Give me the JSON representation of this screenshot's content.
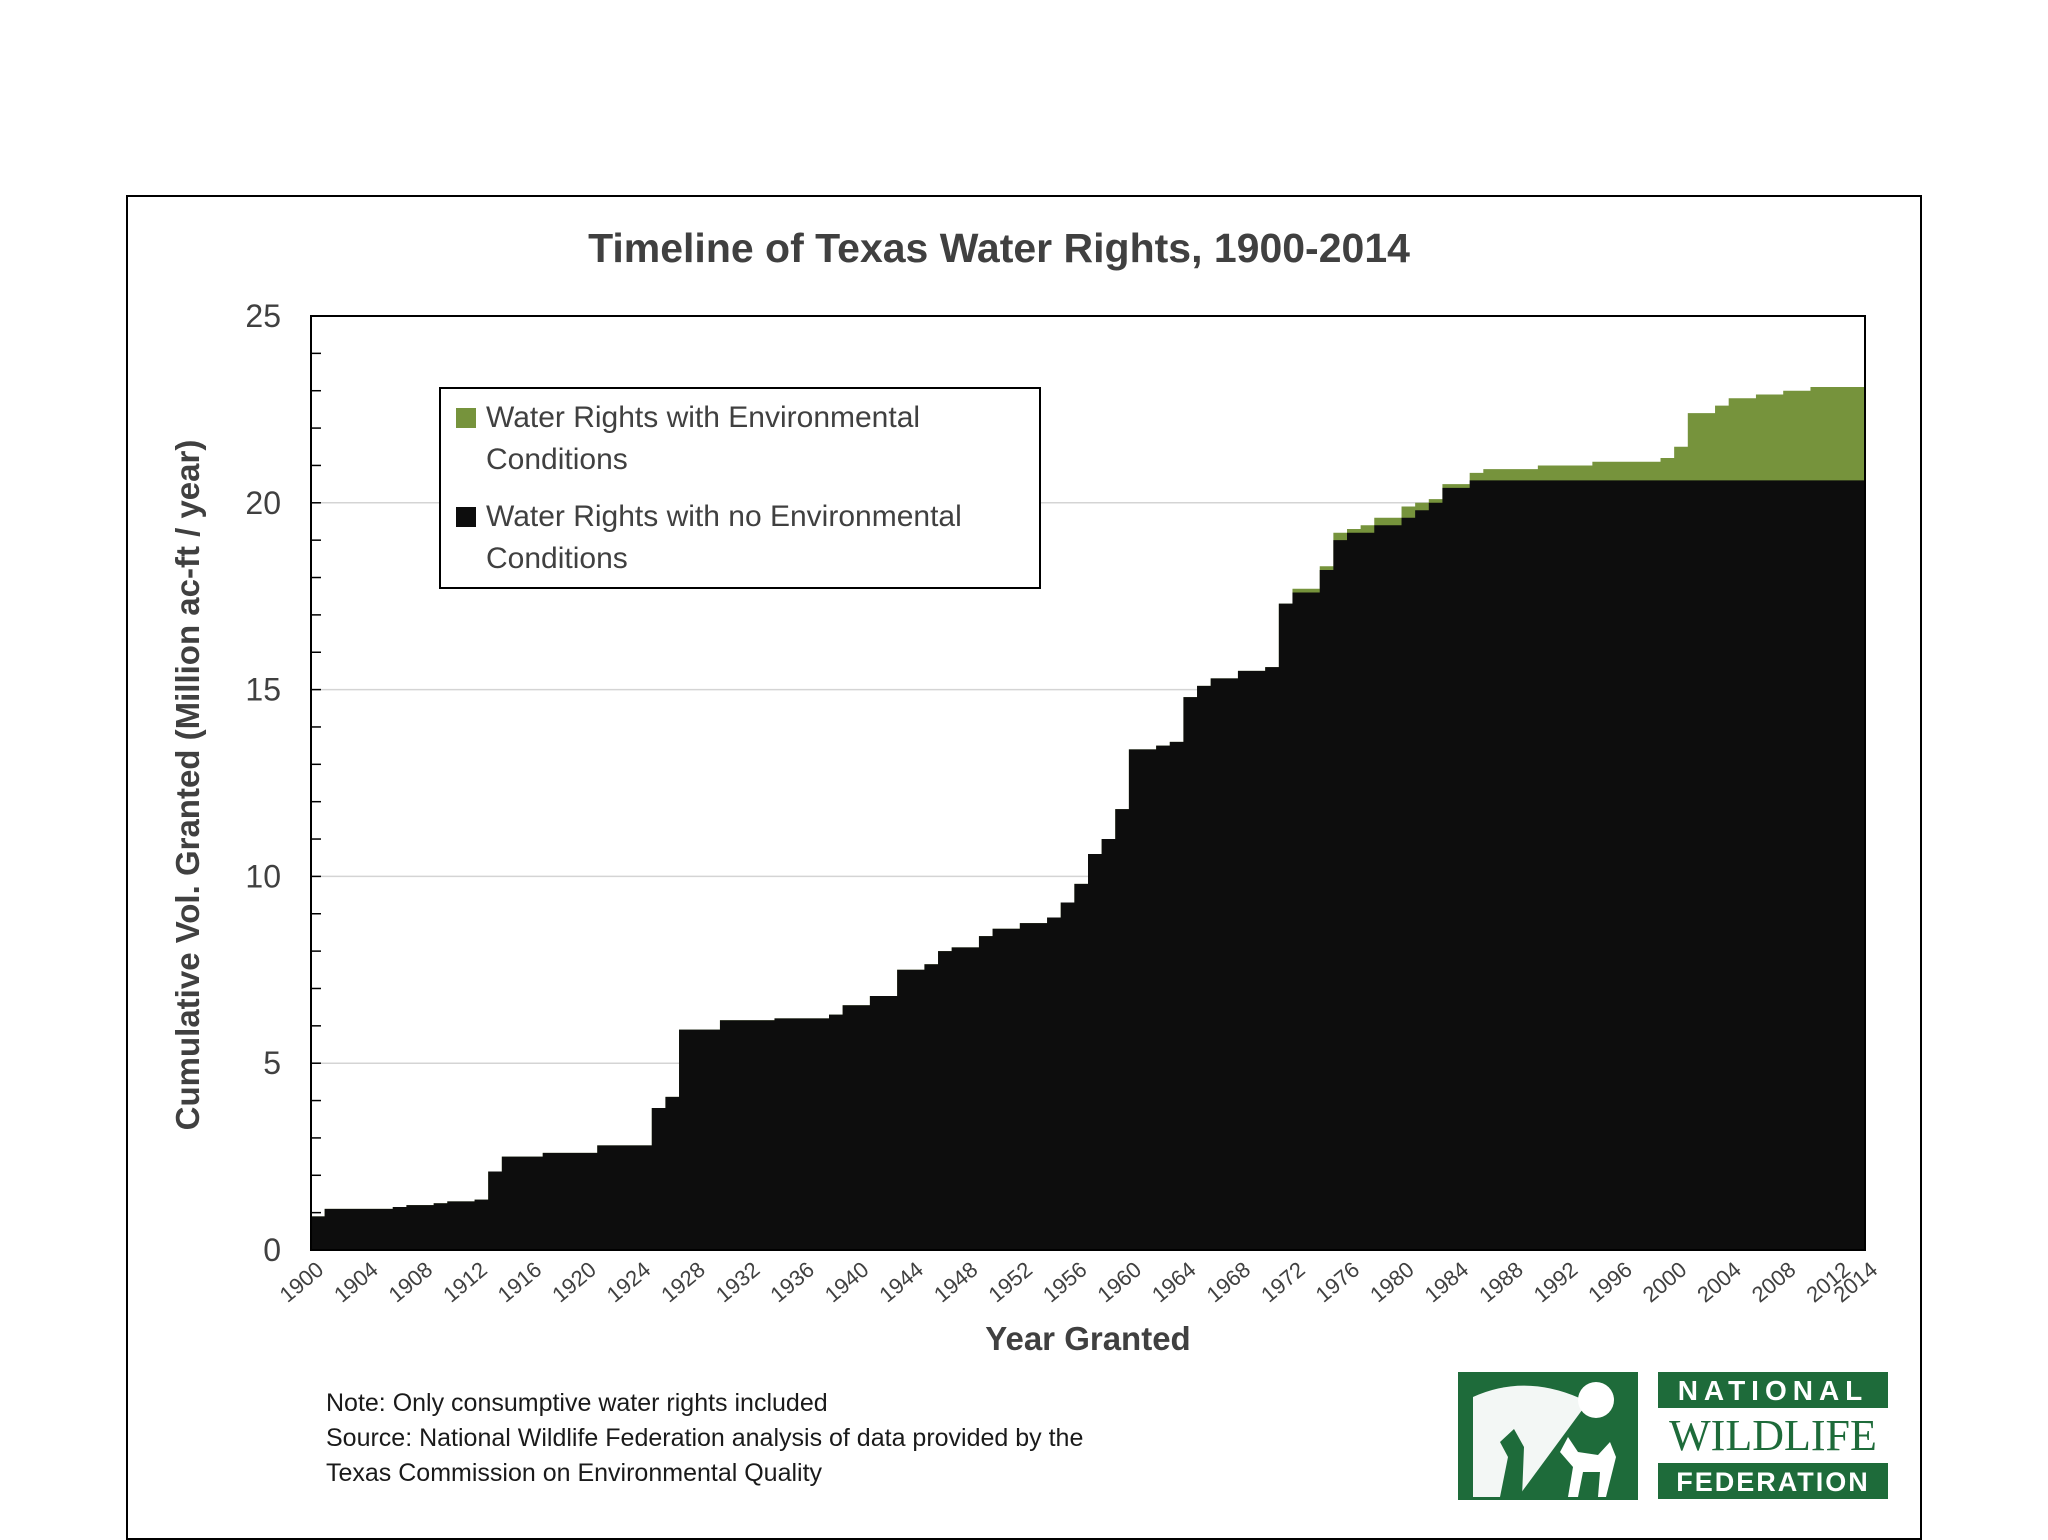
{
  "chart_data": {
    "type": "area",
    "title": "Timeline of Texas Water Rights, 1900-2014",
    "xlabel": "Year Granted",
    "ylabel": "Cumulative Vol. Granted (Million ac-ft / year)",
    "ylim": [
      0,
      25
    ],
    "xlim": [
      1900,
      2014
    ],
    "yticks": [
      "0",
      "5",
      "10",
      "15",
      "20",
      "25"
    ],
    "xticks": [
      "1900",
      "1904",
      "1908",
      "1912",
      "1916",
      "1920",
      "1924",
      "1928",
      "1932",
      "1936",
      "1940",
      "1944",
      "1948",
      "1952",
      "1956",
      "1960",
      "1964",
      "1968",
      "1972",
      "1976",
      "1980",
      "1984",
      "1988",
      "1992",
      "1996",
      "2000",
      "2004",
      "2008",
      "2012",
      "2014"
    ],
    "grid": "horizontal",
    "legend_position": "top-left",
    "series": [
      {
        "name": "Water Rights with no Environmental Conditions",
        "color": "#0d0d0d",
        "points": [
          [
            1900,
            0.9
          ],
          [
            1901,
            1.1
          ],
          [
            1906,
            1.15
          ],
          [
            1907,
            1.2
          ],
          [
            1909,
            1.25
          ],
          [
            1910,
            1.3
          ],
          [
            1912,
            1.35
          ],
          [
            1913,
            2.1
          ],
          [
            1914,
            2.5
          ],
          [
            1917,
            2.6
          ],
          [
            1921,
            2.8
          ],
          [
            1925,
            3.8
          ],
          [
            1926,
            4.1
          ],
          [
            1927,
            5.9
          ],
          [
            1930,
            6.15
          ],
          [
            1934,
            6.2
          ],
          [
            1938,
            6.3
          ],
          [
            1939,
            6.55
          ],
          [
            1941,
            6.8
          ],
          [
            1943,
            7.5
          ],
          [
            1945,
            7.65
          ],
          [
            1946,
            8.0
          ],
          [
            1947,
            8.1
          ],
          [
            1949,
            8.4
          ],
          [
            1950,
            8.6
          ],
          [
            1952,
            8.75
          ],
          [
            1954,
            8.9
          ],
          [
            1955,
            9.3
          ],
          [
            1956,
            9.8
          ],
          [
            1957,
            10.6
          ],
          [
            1958,
            11.0
          ],
          [
            1959,
            11.8
          ],
          [
            1960,
            13.4
          ],
          [
            1962,
            13.5
          ],
          [
            1963,
            13.6
          ],
          [
            1964,
            14.8
          ],
          [
            1965,
            15.1
          ],
          [
            1966,
            15.3
          ],
          [
            1968,
            15.5
          ],
          [
            1970,
            15.6
          ],
          [
            1971,
            17.3
          ],
          [
            1972,
            17.6
          ],
          [
            1974,
            18.2
          ],
          [
            1975,
            19.0
          ],
          [
            1976,
            19.2
          ],
          [
            1977,
            19.2
          ],
          [
            1978,
            19.4
          ],
          [
            1980,
            19.6
          ],
          [
            1981,
            19.8
          ],
          [
            1982,
            20.0
          ],
          [
            1983,
            20.4
          ],
          [
            1985,
            20.6
          ],
          [
            1986,
            20.6
          ],
          [
            2014,
            20.6
          ]
        ]
      },
      {
        "name": "Water Rights with Environmental Conditions",
        "color": "#76933c",
        "points": [
          [
            1900,
            0.9
          ],
          [
            1901,
            1.1
          ],
          [
            1906,
            1.15
          ],
          [
            1907,
            1.2
          ],
          [
            1909,
            1.25
          ],
          [
            1910,
            1.3
          ],
          [
            1912,
            1.35
          ],
          [
            1913,
            2.1
          ],
          [
            1914,
            2.5
          ],
          [
            1917,
            2.6
          ],
          [
            1921,
            2.8
          ],
          [
            1925,
            3.8
          ],
          [
            1926,
            4.1
          ],
          [
            1927,
            5.9
          ],
          [
            1930,
            6.15
          ],
          [
            1934,
            6.2
          ],
          [
            1938,
            6.3
          ],
          [
            1939,
            6.55
          ],
          [
            1941,
            6.8
          ],
          [
            1943,
            7.5
          ],
          [
            1945,
            7.65
          ],
          [
            1946,
            8.0
          ],
          [
            1947,
            8.1
          ],
          [
            1949,
            8.4
          ],
          [
            1950,
            8.6
          ],
          [
            1952,
            8.75
          ],
          [
            1954,
            8.9
          ],
          [
            1955,
            9.3
          ],
          [
            1956,
            9.8
          ],
          [
            1957,
            10.6
          ],
          [
            1958,
            11.0
          ],
          [
            1959,
            11.8
          ],
          [
            1960,
            13.4
          ],
          [
            1962,
            13.5
          ],
          [
            1963,
            13.6
          ],
          [
            1964,
            14.8
          ],
          [
            1965,
            15.1
          ],
          [
            1966,
            15.3
          ],
          [
            1968,
            15.5
          ],
          [
            1970,
            15.6
          ],
          [
            1971,
            17.3
          ],
          [
            1972,
            17.7
          ],
          [
            1974,
            18.3
          ],
          [
            1975,
            19.2
          ],
          [
            1976,
            19.3
          ],
          [
            1977,
            19.4
          ],
          [
            1978,
            19.6
          ],
          [
            1980,
            19.9
          ],
          [
            1981,
            20.0
          ],
          [
            1982,
            20.1
          ],
          [
            1983,
            20.5
          ],
          [
            1985,
            20.8
          ],
          [
            1986,
            20.9
          ],
          [
            1990,
            21.0
          ],
          [
            1994,
            21.1
          ],
          [
            1999,
            21.2
          ],
          [
            2000,
            21.5
          ],
          [
            2001,
            22.4
          ],
          [
            2003,
            22.6
          ],
          [
            2004,
            22.8
          ],
          [
            2006,
            22.9
          ],
          [
            2008,
            23.0
          ],
          [
            2010,
            23.1
          ],
          [
            2014,
            23.15
          ]
        ]
      }
    ],
    "legend": [
      {
        "lines": [
          "Water Rights with Environmental",
          "Conditions"
        ],
        "color": "#76933c"
      },
      {
        "lines": [
          "Water Rights with no Environmental",
          "Conditions"
        ],
        "color": "#0d0d0d"
      }
    ]
  },
  "notes": {
    "line1": "Note:   Only consumptive  water rights included",
    "line2": "Source:   National Wildlife Federation analysis of data provided by the",
    "line3": "Texas Commission on Environmental Quality"
  },
  "logo": {
    "line1": "NATIONAL",
    "line2": "WILDLIFE",
    "line3": "FEDERATION",
    "color": "#1e6b3a"
  }
}
